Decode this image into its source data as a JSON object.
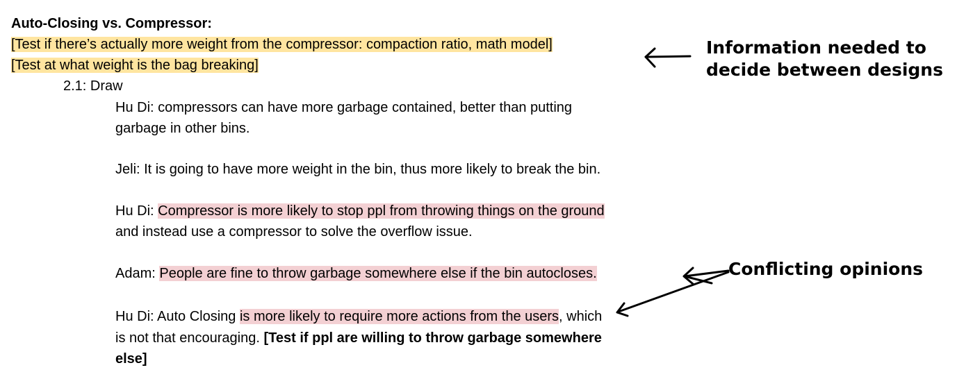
{
  "notes": {
    "title": "Auto-Closing vs. Compressor:",
    "test_compactor": "[Test if there’s actually more weight from the compressor: compaction ratio, math model]",
    "test_bag": "[Test at what weight is the bag breaking]",
    "section": "2.1: Draw",
    "entries": [
      {
        "lines": [
          "Hu Di: compressors can have more garbage contained, better than putting",
          "garbage in other bins."
        ]
      },
      {
        "lines": [
          "Jeli: It is going to have more weight in the bin, thus more likely to break the bin."
        ]
      },
      {
        "speaker": "Hu Di: ",
        "highlight": "Compressor is more likely to stop ppl from throwing things on the ground",
        "line2": "and instead use a compressor to solve the overflow issue."
      },
      {
        "speaker": "Adam: ",
        "highlight": "People are fine to throw garbage somewhere else if the bin autocloses."
      },
      {
        "speaker": "Hu Di: Auto Closing ",
        "highlight": "is more likely to require more actions from the users",
        "rest": ", which",
        "line2_plain": "is not that encouraging. ",
        "line2_bold": "[Test if ppl are willing to throw garbage somewhere",
        "line3_bold": "else]"
      }
    ]
  },
  "annotations": {
    "info_line1": "Information needed to",
    "info_line2": "decide between designs",
    "conflicting": "Conflicting opinions"
  },
  "colors": {
    "highlight_yellow": "#ffe5a0",
    "highlight_pink": "#f3d0d3"
  }
}
